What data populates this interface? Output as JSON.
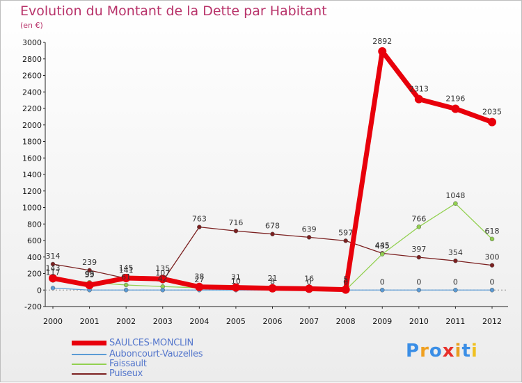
{
  "title": "Evolution du Montant de la Dette par Habitant",
  "unit": "(en €)",
  "logo": {
    "letters": [
      "P",
      "r",
      "o",
      "x",
      "i",
      "t",
      "i"
    ],
    "colors": [
      "#3a8ee6",
      "#f0a020",
      "#3a8ee6",
      "#e8302a",
      "#e8a020",
      "#3a8ee6",
      "#f0c020"
    ]
  },
  "chart_data": {
    "type": "line",
    "title": "Evolution du Montant de la Dette par Habitant",
    "ylabel": "(en €)",
    "xlabel": "",
    "x": [
      "2000",
      "2001",
      "2002",
      "2003",
      "2004",
      "2005",
      "2006",
      "2007",
      "2008",
      "2009",
      "2010",
      "2011",
      "2012"
    ],
    "ylim": [
      -200,
      3000
    ],
    "yticks": [
      -200,
      0,
      200,
      400,
      600,
      800,
      1000,
      1200,
      1400,
      1600,
      1800,
      2000,
      2200,
      2400,
      2600,
      2800,
      3000
    ],
    "grid": false,
    "legend_position": "bottom-left",
    "series": [
      {
        "name": "SAULCES-MONCLIN",
        "color": "#e8000b",
        "width": 7,
        "marker": 6,
        "values": [
          143,
          59,
          145,
          135,
          38,
          31,
          21,
          16,
          5,
          2892,
          2313,
          2196,
          2035
        ],
        "labels": [
          "143",
          "59",
          "145",
          "135",
          "38",
          "31",
          "21",
          "16",
          "5",
          "2892",
          "2313",
          "2196",
          "2035"
        ]
      },
      {
        "name": "Auboncourt-Vauzelles",
        "color": "#5b9bd5",
        "width": 1.3,
        "marker": 3,
        "values": [
          24,
          0,
          0,
          0,
          0,
          0,
          0,
          0,
          0,
          0,
          0,
          0,
          0
        ],
        "labels": [
          "",
          "",
          "",
          "",
          "",
          "",
          "",
          "",
          "",
          "0",
          "0",
          "0",
          "0"
        ]
      },
      {
        "name": "Faissault",
        "color": "#92d050",
        "width": 1.3,
        "marker": 3,
        "values": [
          117,
          93,
          61,
          42,
          27,
          10,
          8,
          0,
          0,
          435,
          766,
          1048,
          618
        ],
        "labels": [
          "117",
          "93",
          "61",
          "42",
          "27",
          "10",
          "8",
          "0",
          "0",
          "435",
          "766",
          "1048",
          "618"
        ]
      },
      {
        "name": "Puiseux",
        "color": "#7b2020",
        "width": 1.3,
        "marker": 3,
        "values": [
          314,
          239,
          141,
          107,
          763,
          716,
          678,
          639,
          597,
          445,
          397,
          354,
          300
        ],
        "labels": [
          "314",
          "239",
          "141",
          "107",
          "763",
          "716",
          "678",
          "639",
          "597",
          "445",
          "397",
          "354",
          "300"
        ]
      }
    ]
  }
}
